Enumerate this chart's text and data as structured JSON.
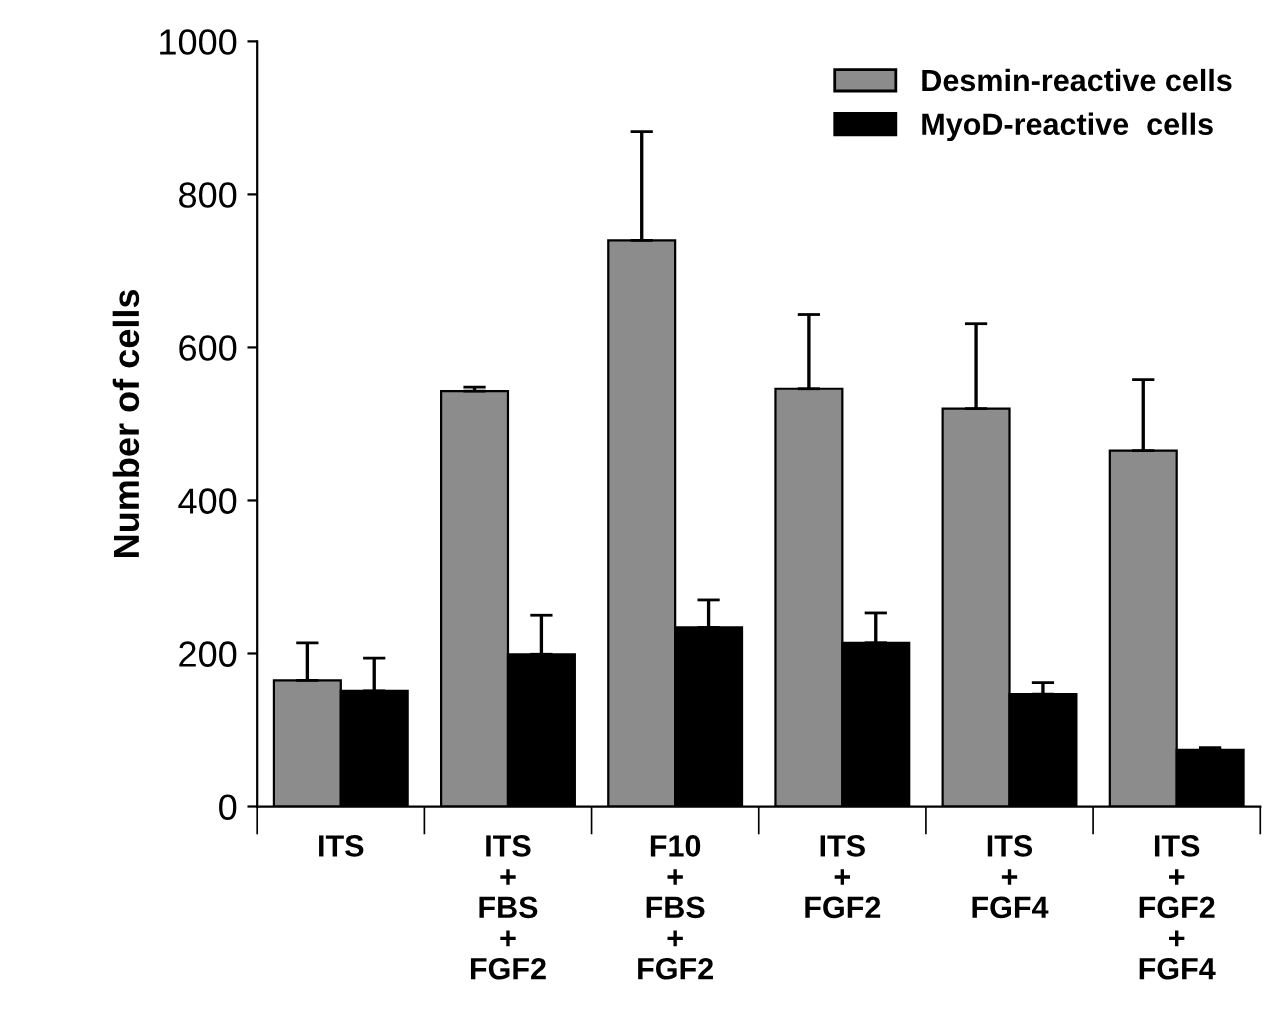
{
  "chart_data": {
    "type": "bar",
    "ylabel": "Number of cells",
    "categories": [
      "ITS",
      "ITS\n+\nFBS\n+\nFGF2",
      "F10\n+\nFBS\n+\nFGF2",
      "ITS\n+\nFGF2",
      "ITS\n+\nFGF4",
      "ITS\n+\nFGF2\n+\nFGF4"
    ],
    "series": [
      {
        "name": "Desmin-reactive cells",
        "color": "#8c8c8c",
        "values": [
          165,
          543,
          740,
          546,
          520,
          465
        ],
        "errors": [
          [
            165,
            214
          ],
          [
            543,
            548
          ],
          [
            740,
            882
          ],
          [
            546,
            643
          ],
          [
            520,
            631
          ],
          [
            465,
            558
          ]
        ]
      },
      {
        "name": "MyoD-reactive  cells",
        "color": "#000000",
        "values": [
          151,
          199,
          234,
          214,
          147,
          74
        ],
        "errors": [
          [
            151,
            194
          ],
          [
            199,
            250
          ],
          [
            234,
            270
          ],
          [
            214,
            253
          ],
          [
            147,
            162
          ],
          [
            74,
            77
          ]
        ]
      }
    ],
    "ylim": [
      0,
      1000
    ],
    "yticks": [
      0,
      200,
      400,
      600,
      800,
      1000
    ],
    "grid": false,
    "legend": "top right"
  }
}
